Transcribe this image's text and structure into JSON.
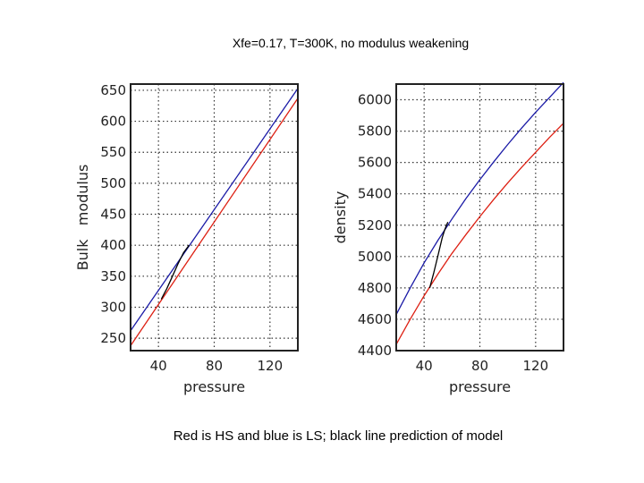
{
  "title": "Xfe=0.17, T=300K, no modulus weakening",
  "caption": "Red is HS and blue is LS; black line prediction of model",
  "colors": {
    "hs": "#dd1f12",
    "ls": "#1a1aa6",
    "model": "#000000",
    "grid": "#333333"
  },
  "chart_data": [
    {
      "type": "line",
      "xlabel": "pressure",
      "ylabel": "Bulk   modulus",
      "xlim": [
        20,
        140
      ],
      "ylim": [
        230,
        660
      ],
      "xticks": [
        40,
        80,
        120
      ],
      "yticks": [
        250,
        300,
        350,
        400,
        450,
        500,
        550,
        600,
        650
      ],
      "grid": true,
      "series": [
        {
          "name": "HS",
          "color": "#dd1f12",
          "x": [
            20,
            140
          ],
          "y": [
            238,
            637
          ]
        },
        {
          "name": "LS",
          "color": "#1a1aa6",
          "x": [
            20,
            140
          ],
          "y": [
            262,
            653
          ]
        },
        {
          "name": "model",
          "color": "#000000",
          "x": [
            42,
            46,
            50,
            54,
            58,
            62
          ],
          "y": [
            313,
            330,
            350,
            370,
            388,
            400
          ]
        }
      ]
    },
    {
      "type": "line",
      "xlabel": "pressure",
      "ylabel": "density",
      "xlim": [
        20,
        140
      ],
      "ylim": [
        4400,
        6100
      ],
      "xticks": [
        40,
        80,
        120
      ],
      "yticks": [
        4400,
        4600,
        4800,
        5000,
        5200,
        5400,
        5600,
        5800,
        6000
      ],
      "grid": true,
      "series": [
        {
          "name": "HS",
          "color": "#dd1f12",
          "x": [
            20,
            30,
            40,
            50,
            60,
            70,
            80,
            90,
            100,
            110,
            120,
            130,
            140
          ],
          "y": [
            4440,
            4600,
            4750,
            4890,
            5020,
            5140,
            5255,
            5365,
            5470,
            5570,
            5665,
            5760,
            5850
          ]
        },
        {
          "name": "LS",
          "color": "#1a1aa6",
          "x": [
            20,
            30,
            40,
            50,
            60,
            70,
            80,
            90,
            100,
            110,
            120,
            130,
            140
          ],
          "y": [
            4630,
            4800,
            4960,
            5105,
            5240,
            5370,
            5490,
            5605,
            5715,
            5820,
            5920,
            6015,
            6110
          ]
        },
        {
          "name": "model",
          "color": "#000000",
          "x": [
            44,
            47,
            50,
            53,
            55,
            57
          ],
          "y": [
            4800,
            4900,
            5010,
            5120,
            5175,
            5220
          ]
        }
      ]
    }
  ]
}
